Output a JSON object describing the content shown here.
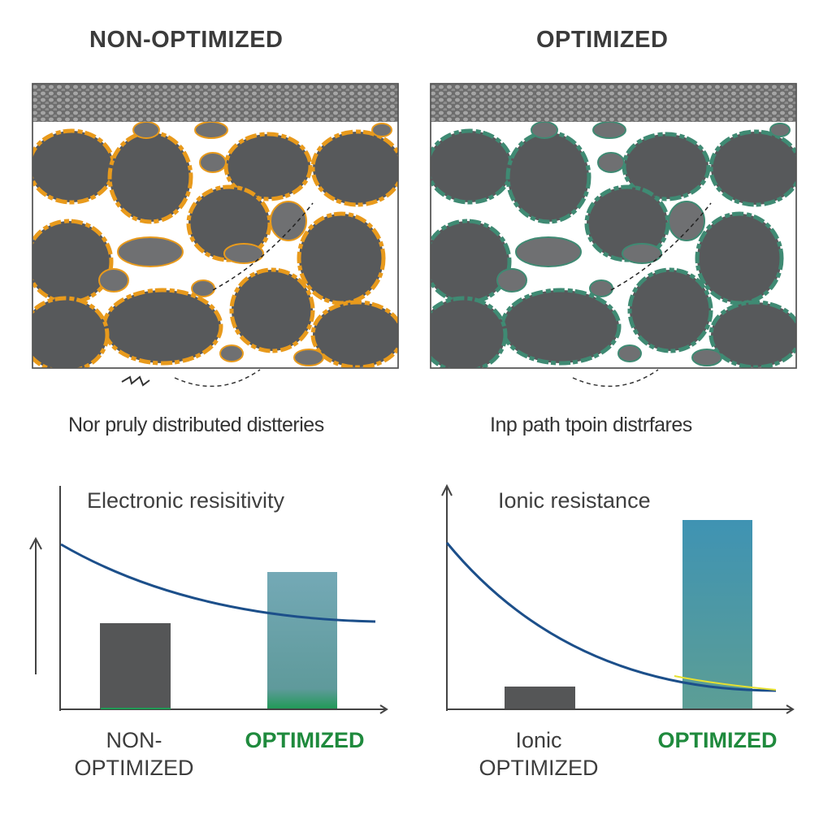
{
  "left_panel": {
    "title": "NON-OPTIMIZED",
    "caption": "Nor pruly distributed distteries",
    "coating_color": "#e89a1c"
  },
  "right_panel": {
    "title": "OPTIMIZED",
    "caption": "Inp path tpoin distrfares",
    "coating_color": "#3f8a73"
  },
  "left_chart": {
    "title": "Electronic resisitivity",
    "x_labels": [
      "NON-\nOPTIMIZED",
      "OPTIMIZED"
    ],
    "label_1a": "NON-",
    "label_1b": "OPTIMIZED",
    "label_2": "OPTIMIZED"
  },
  "right_chart": {
    "title": "Ionic resistance",
    "label_1a": "Ionic",
    "label_1b": "OPTIMIZED",
    "label_2": "OPTIMIZED"
  },
  "colors": {
    "particle": "#57595b",
    "curve": "#1c4f8a",
    "bar_dark": "#555657",
    "bar_teal": "#6aa3ad",
    "accent_green": "#1f8a3d"
  }
}
